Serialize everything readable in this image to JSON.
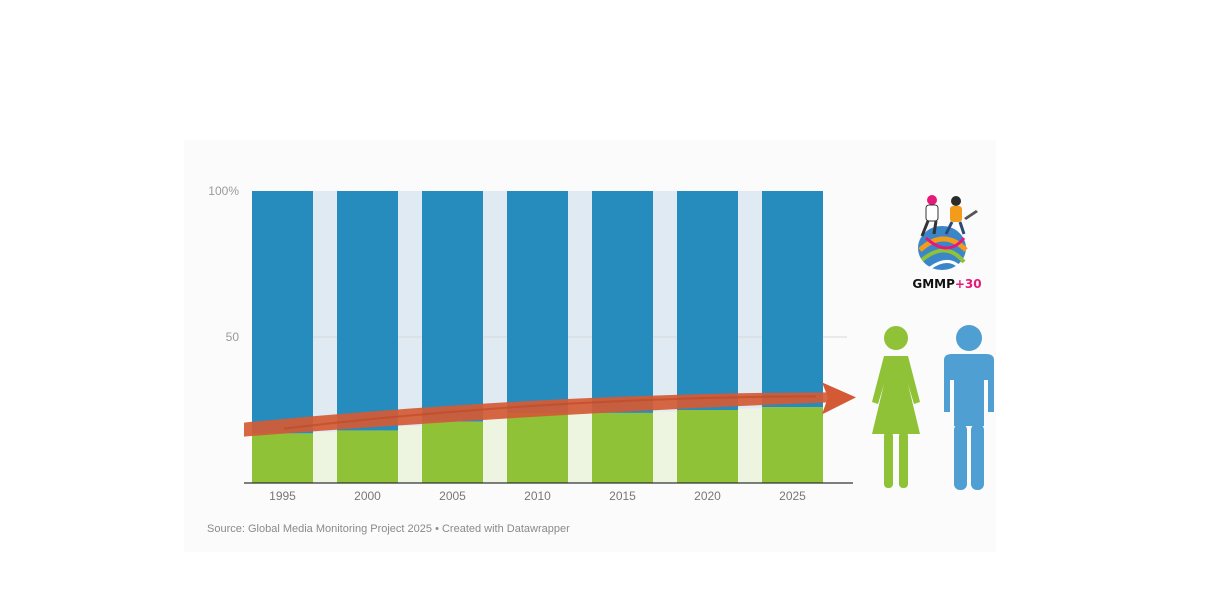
{
  "chart_data": {
    "type": "bar",
    "stacked": true,
    "title": "",
    "xlabel": "",
    "ylabel": "",
    "categories": [
      "1995",
      "2000",
      "2005",
      "2010",
      "2015",
      "2020",
      "2025"
    ],
    "series": [
      {
        "values": [
          17,
          18,
          21,
          24,
          24,
          25,
          26
        ],
        "color": "#8fc236"
      },
      {
        "values": [
          83,
          82,
          79,
          76,
          76,
          75,
          74
        ],
        "color": "#268bbd"
      }
    ],
    "ylim": [
      0,
      100
    ],
    "yticks": [
      {
        "value": 0,
        "label": ""
      },
      {
        "value": 50,
        "label": "50"
      },
      {
        "value": 100,
        "label": "100%"
      }
    ],
    "gap_colors": {
      "top": "#dfeaf2",
      "bottom": "#edf5e1"
    },
    "trend_arrow": {
      "from_year": "1995",
      "to_year": "2025",
      "color": "#d45a35"
    },
    "grid": true,
    "legend": "none"
  },
  "source_text": "Source: Global Media Monitoring Project 2025 • Created with Datawrapper",
  "logo": {
    "text_main": "GMMP",
    "text_accent": "+30",
    "accent_color": "#e6197b"
  },
  "figures": {
    "female_color": "#8fc236",
    "male_color": "#4f9fd2"
  }
}
